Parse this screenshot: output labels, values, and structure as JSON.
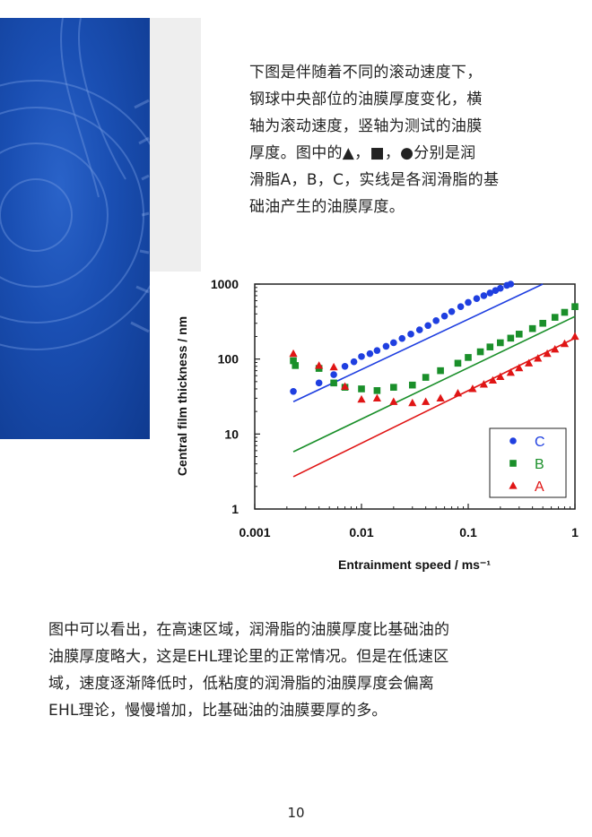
{
  "intro": {
    "text": "下图是伴随着不同的滚动速度下，\n钢球中央部位的油膜厚度变化，横\n轴为滚动速度，竖轴为测试的油膜\n厚度。图中的▲，■，●分别是润\n滑脂A，B，C，实线是各润滑脂的基\n础油产生的油膜厚度。"
  },
  "chart_data": {
    "type": "scatter",
    "xlabel": "Entrainment speed / ms⁻¹",
    "ylabel": "Central film thickness / nm",
    "xscale": "log",
    "yscale": "log",
    "xlim": [
      0.001,
      1
    ],
    "ylim": [
      1,
      1000
    ],
    "xticks": [
      "0.001",
      "0.01",
      "0.1",
      "1"
    ],
    "yticks": [
      "1",
      "10",
      "100",
      "1000"
    ],
    "grid": false,
    "legend_position": "bottom-right",
    "series": [
      {
        "name": "C",
        "marker": "circle",
        "color": "#1f3fe0",
        "x": [
          0.0023,
          0.004,
          0.0055,
          0.007,
          0.0085,
          0.01,
          0.012,
          0.014,
          0.017,
          0.02,
          0.024,
          0.029,
          0.035,
          0.042,
          0.05,
          0.06,
          0.07,
          0.085,
          0.1,
          0.12,
          0.14,
          0.16,
          0.18,
          0.2,
          0.23,
          0.25
        ],
        "y": [
          37,
          48,
          62,
          80,
          92,
          108,
          118,
          130,
          148,
          165,
          188,
          215,
          245,
          280,
          325,
          375,
          430,
          500,
          570,
          640,
          700,
          760,
          820,
          880,
          960,
          1000
        ]
      },
      {
        "name": "B",
        "marker": "square",
        "color": "#1a8f2a",
        "x": [
          0.0023,
          0.0024,
          0.004,
          0.0055,
          0.007,
          0.01,
          0.014,
          0.02,
          0.03,
          0.04,
          0.055,
          0.08,
          0.1,
          0.13,
          0.16,
          0.2,
          0.25,
          0.3,
          0.4,
          0.5,
          0.65,
          0.8,
          1.0
        ],
        "y": [
          95,
          82,
          75,
          48,
          42,
          40,
          38,
          42,
          45,
          57,
          70,
          88,
          105,
          125,
          145,
          165,
          190,
          215,
          255,
          300,
          360,
          420,
          500
        ]
      },
      {
        "name": "A",
        "marker": "triangle",
        "color": "#e01515",
        "x": [
          0.0023,
          0.004,
          0.0055,
          0.007,
          0.01,
          0.014,
          0.02,
          0.03,
          0.04,
          0.055,
          0.08,
          0.11,
          0.14,
          0.17,
          0.2,
          0.25,
          0.3,
          0.37,
          0.45,
          0.55,
          0.65,
          0.8,
          1.0
        ],
        "y": [
          118,
          82,
          78,
          43,
          29,
          30,
          27,
          26,
          27,
          30,
          35,
          40,
          46,
          52,
          58,
          66,
          76,
          88,
          102,
          118,
          135,
          160,
          200
        ]
      }
    ],
    "lines": [
      {
        "name": "C",
        "color": "#1f3fe0",
        "x": [
          0.0023,
          0.5
        ],
        "y": [
          27,
          1000
        ]
      },
      {
        "name": "B",
        "color": "#1a8f2a",
        "x": [
          0.0023,
          1.0
        ],
        "y": [
          5.8,
          370
        ]
      },
      {
        "name": "A",
        "color": "#e01515",
        "x": [
          0.0023,
          1.0
        ],
        "y": [
          2.7,
          190
        ]
      }
    ]
  },
  "body": {
    "text": "图中可以看出，在高速区域，润滑脂的油膜厚度比基础油的\n油膜厚度略大，这是EHL理论里的正常情况。但是在低速区\n域，速度逐渐降低时，低粘度的润滑脂的油膜厚度会偏离\nEHL理论，慢慢增加，比基础油的油膜要厚的多。"
  },
  "page_number": "10"
}
